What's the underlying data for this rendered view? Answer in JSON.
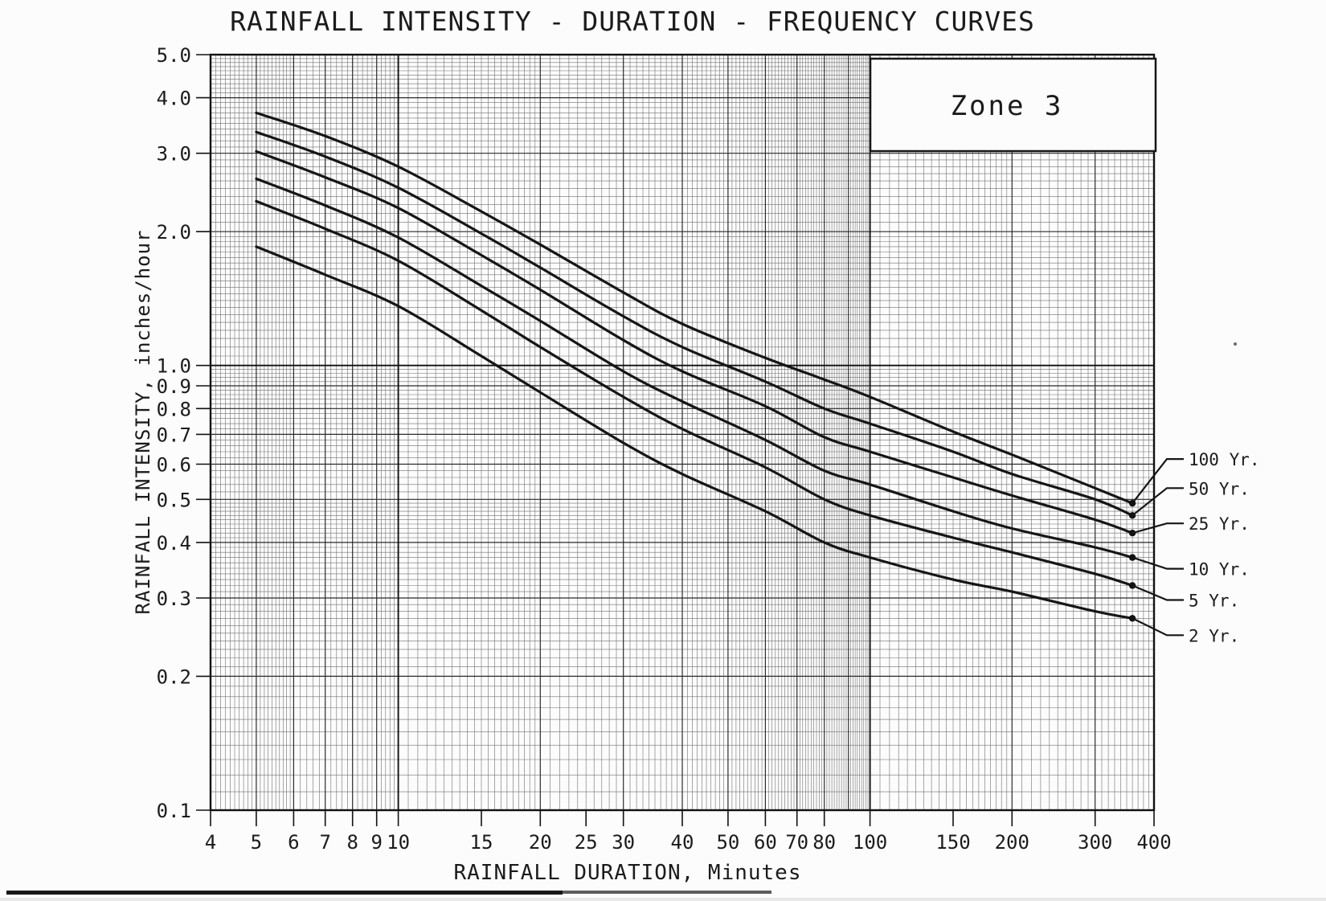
{
  "page": {
    "paper_color": "#fcfcfc",
    "ink_color": "#1b1b1b",
    "description": "Scanned engineering log-log chart sheet with dark scan artifact bar along bottom edge"
  },
  "chart_data": {
    "type": "line",
    "title": "RAINFALL INTENSITY - DURATION - FREQUENCY CURVES",
    "xlabel": "RAINFALL DURATION, Minutes",
    "ylabel": "RAINFALL INTENSITY, inches/hour",
    "zone_box_label": "Zone 3",
    "x_scale": "log",
    "y_scale": "log",
    "xlim": [
      4,
      400
    ],
    "ylim": [
      0.1,
      5.0
    ],
    "grid": "dense log-log graph paper grid on both axes",
    "legend_position": "right-outside with leader lines to dots at curve ends",
    "x_tick_labels": [
      "4",
      "5",
      "6",
      "7",
      "8",
      "9",
      "10",
      "15",
      "20",
      "25",
      "30",
      "40",
      "50",
      "60",
      "70",
      "80",
      "100",
      "150",
      "200",
      "300",
      "400"
    ],
    "y_tick_labels": [
      "5.0",
      "4.0",
      "3.0",
      "2.0",
      "1.0",
      "0.9",
      "0.8",
      "0.7",
      "0.6",
      "0.5",
      "0.4",
      "0.3",
      "0.2",
      "0.1"
    ],
    "x": [
      5,
      7,
      10,
      15,
      20,
      30,
      40,
      60,
      80,
      100,
      150,
      200,
      300,
      360
    ],
    "series": [
      {
        "name": "100 Yr.",
        "values": [
          3.7,
          3.28,
          2.8,
          2.22,
          1.87,
          1.46,
          1.24,
          1.04,
          0.93,
          0.85,
          0.71,
          0.63,
          0.53,
          0.49
        ]
      },
      {
        "name": "50 Yr.",
        "values": [
          3.35,
          2.95,
          2.51,
          1.98,
          1.66,
          1.29,
          1.1,
          0.92,
          0.8,
          0.74,
          0.64,
          0.57,
          0.5,
          0.46
        ]
      },
      {
        "name": "25 Yr.",
        "values": [
          3.03,
          2.65,
          2.26,
          1.77,
          1.48,
          1.14,
          0.97,
          0.81,
          0.69,
          0.64,
          0.56,
          0.51,
          0.45,
          0.42
        ]
      },
      {
        "name": "10 Yr.",
        "values": [
          2.63,
          2.29,
          1.94,
          1.51,
          1.26,
          0.97,
          0.83,
          0.68,
          0.58,
          0.54,
          0.47,
          0.43,
          0.39,
          0.37
        ]
      },
      {
        "name": "5 Yr.",
        "values": [
          2.34,
          2.03,
          1.72,
          1.33,
          1.1,
          0.85,
          0.72,
          0.59,
          0.5,
          0.46,
          0.41,
          0.38,
          0.34,
          0.32
        ]
      },
      {
        "name": "2 Yr.",
        "values": [
          1.85,
          1.6,
          1.36,
          1.05,
          0.87,
          0.67,
          0.57,
          0.47,
          0.4,
          0.37,
          0.33,
          0.31,
          0.28,
          0.27
        ]
      }
    ],
    "end_marker": "filled dot at the 360-minute end of every curve"
  }
}
